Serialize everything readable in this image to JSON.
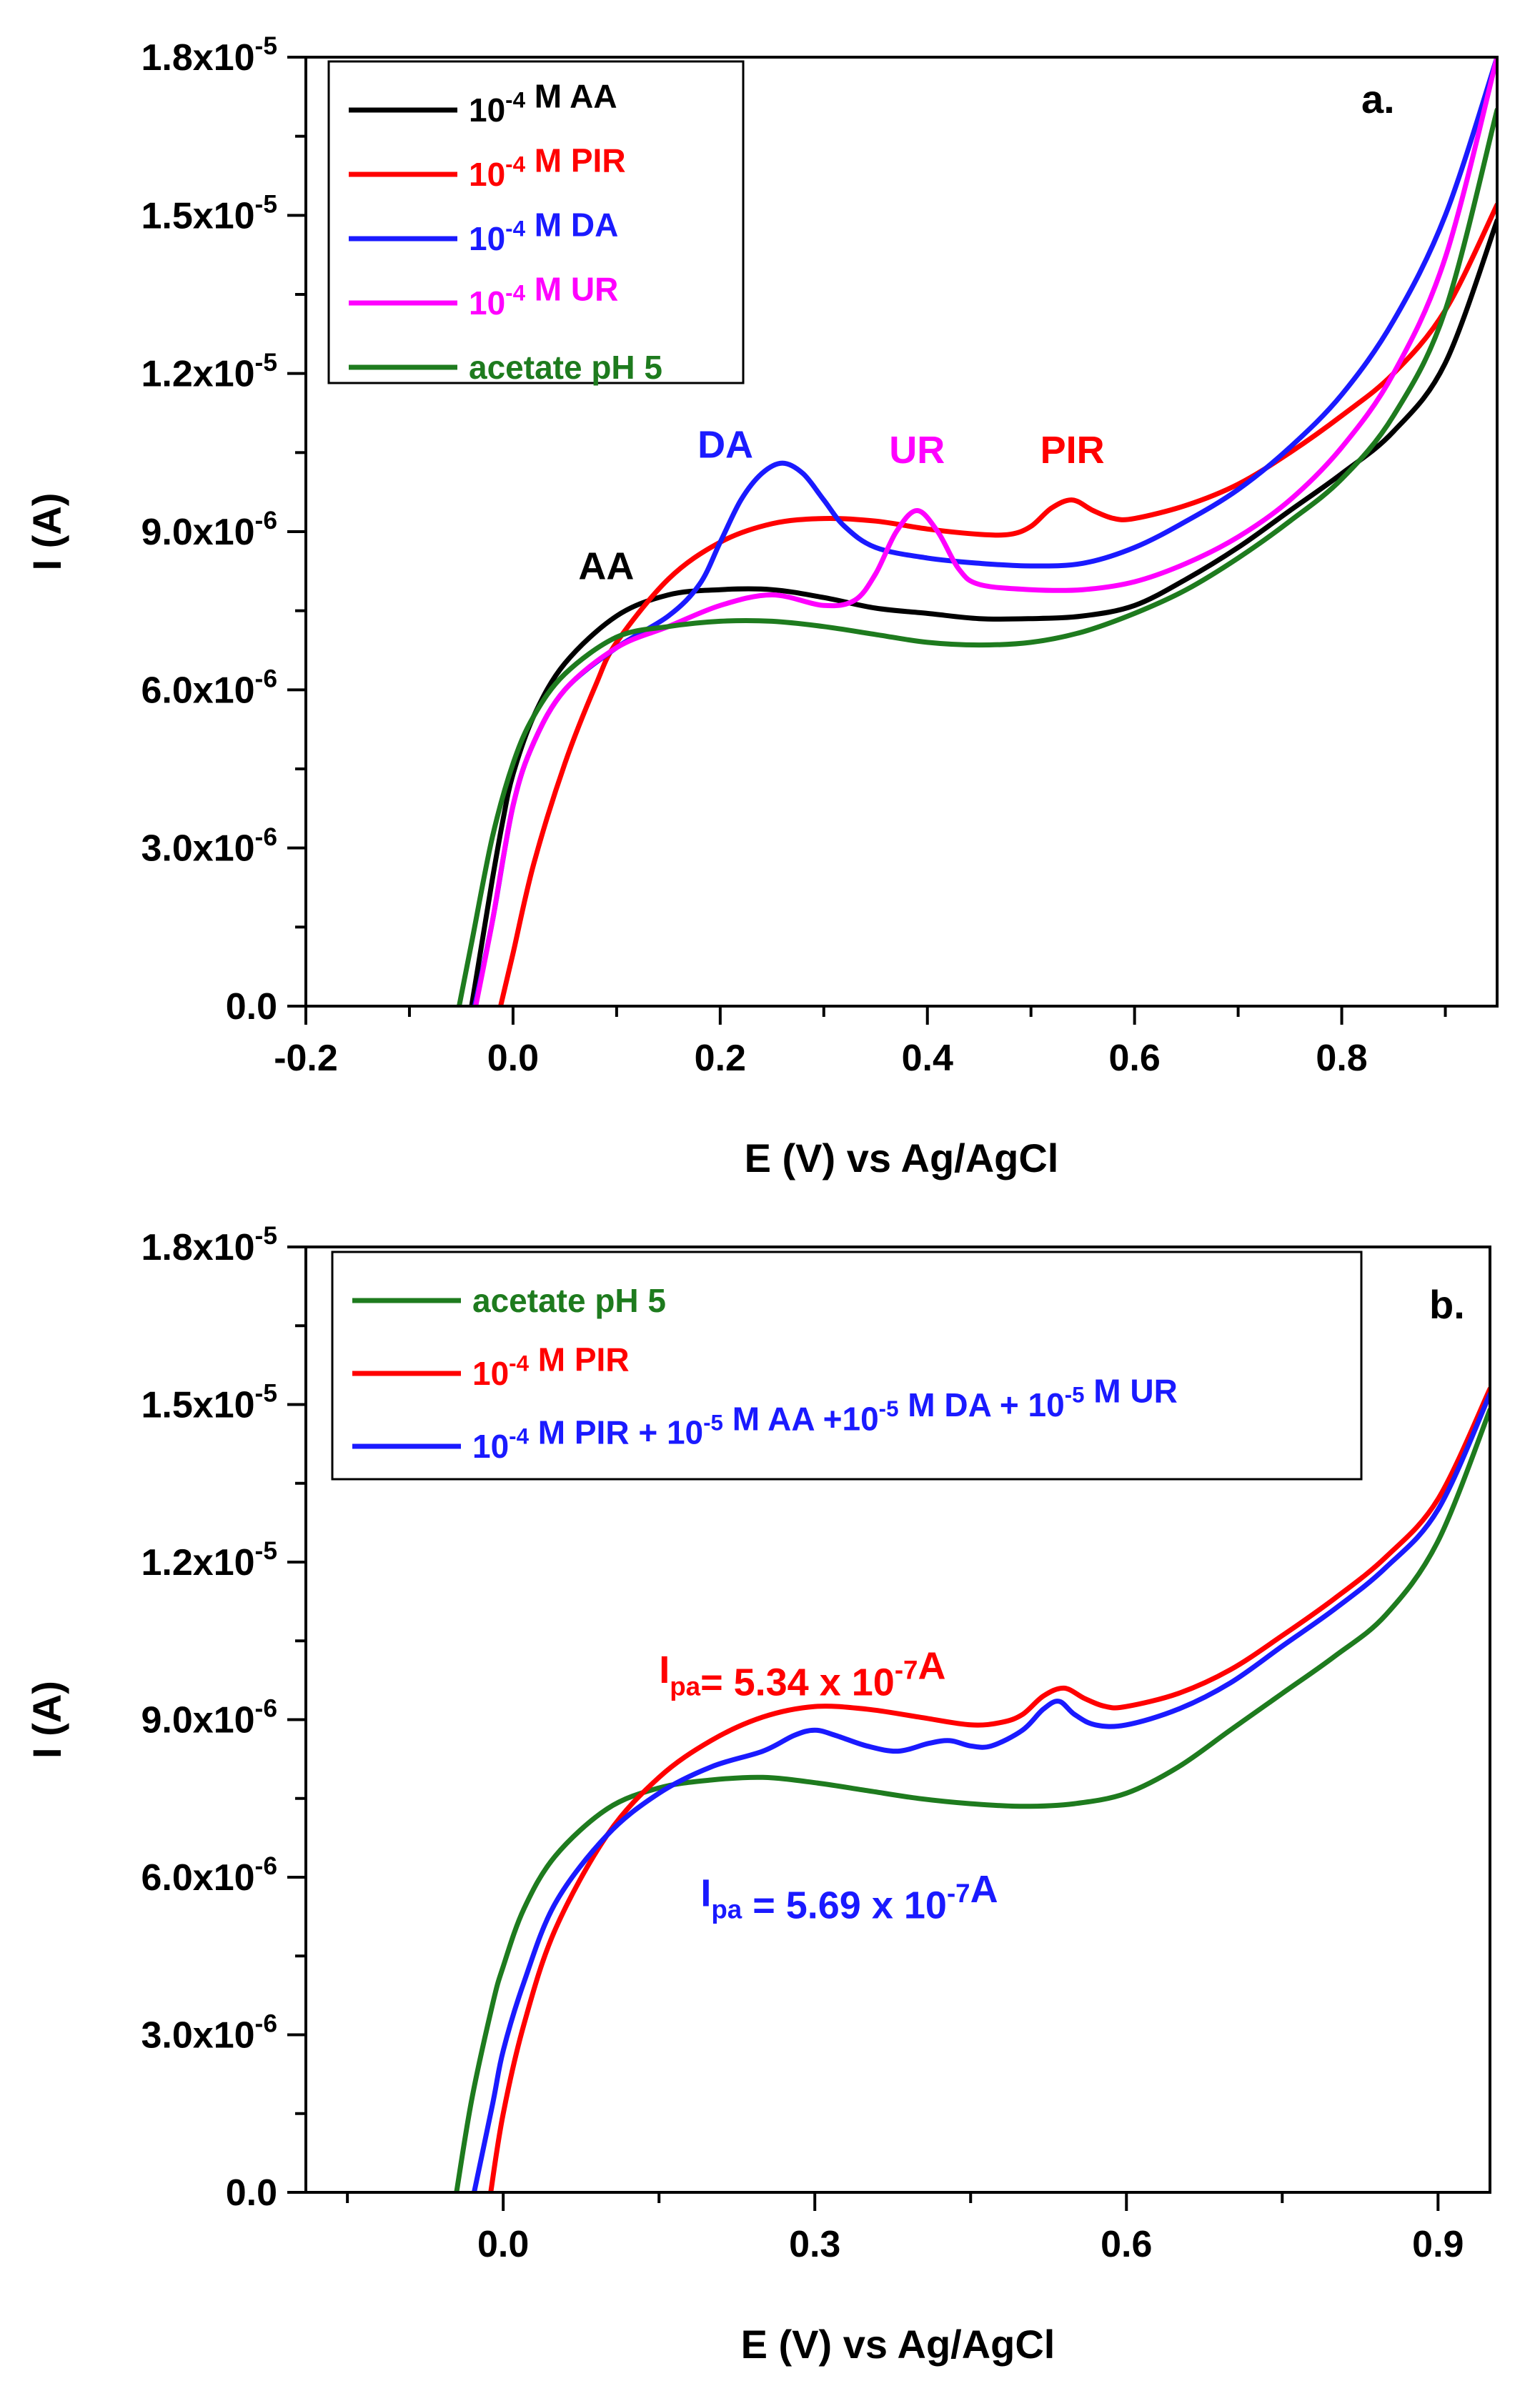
{
  "chart_data": [
    {
      "type": "line",
      "panel_label": "a.",
      "xlabel": "E (V) vs Ag/AgCl",
      "ylabel": "I (A)",
      "xlim": [
        -0.2,
        0.95
      ],
      "ylim": [
        0,
        1.8e-05
      ],
      "x_ticks": [
        -0.2,
        0.0,
        0.2,
        0.4,
        0.6,
        0.8
      ],
      "x_tick_labels": [
        "-0.2",
        "0.0",
        "0.2",
        "0.4",
        "0.6",
        "0.8"
      ],
      "y_ticks": [
        0,
        3e-06,
        6e-06,
        9e-06,
        1.2e-05,
        1.5e-05,
        1.8e-05
      ],
      "y_tick_labels": [
        {
          "mant": "0.0",
          "exp": ""
        },
        {
          "mant": "3.0x10",
          "exp": "-6"
        },
        {
          "mant": "6.0x10",
          "exp": "-6"
        },
        {
          "mant": "9.0x10",
          "exp": "-6"
        },
        {
          "mant": "1.2x10",
          "exp": "-5"
        },
        {
          "mant": "1.5x10",
          "exp": "-5"
        },
        {
          "mant": "1.8x10",
          "exp": "-5"
        }
      ],
      "legend_position": "top-left",
      "legend": [
        {
          "series": "AA",
          "parts": [
            {
              "t": "10"
            },
            {
              "t": "-4",
              "sup": true
            },
            {
              "t": " M AA"
            }
          ]
        },
        {
          "series": "PIR",
          "parts": [
            {
              "t": "10"
            },
            {
              "t": "-4",
              "sup": true
            },
            {
              "t": " M PIR"
            }
          ]
        },
        {
          "series": "DA",
          "parts": [
            {
              "t": "10"
            },
            {
              "t": "-4",
              "sup": true
            },
            {
              "t": " M DA"
            }
          ]
        },
        {
          "series": "UR",
          "parts": [
            {
              "t": "10"
            },
            {
              "t": "-4",
              "sup": true
            },
            {
              "t": " M UR"
            }
          ]
        },
        {
          "series": "acetate",
          "parts": [
            {
              "t": "acetate pH 5"
            }
          ]
        }
      ],
      "annotations": [
        {
          "text": "AA",
          "x": 0.09,
          "y": 8.1e-06,
          "color": "#000000"
        },
        {
          "text": "DA",
          "x": 0.205,
          "y": 1.04e-05,
          "color": "#1a1aff"
        },
        {
          "text": "UR",
          "x": 0.39,
          "y": 1.03e-05,
          "color": "#ff00ff"
        },
        {
          "text": "PIR",
          "x": 0.54,
          "y": 1.03e-05,
          "color": "#ff0000"
        }
      ],
      "series": [
        {
          "name": "AA",
          "color": "#000000",
          "x": [
            -0.04,
            -0.03,
            -0.02,
            -0.01,
            0.0,
            0.02,
            0.05,
            0.1,
            0.15,
            0.2,
            0.25,
            0.3,
            0.35,
            0.4,
            0.45,
            0.5,
            0.55,
            0.6,
            0.65,
            0.7,
            0.75,
            0.8,
            0.85,
            0.9,
            0.95
          ],
          "y": [
            0,
            1.2e-06,
            2.4e-06,
            3.5e-06,
            4.4e-06,
            5.5e-06,
            6.5e-06,
            7.4e-06,
            7.8e-06,
            7.9e-06,
            7.9e-06,
            7.75e-06,
            7.55e-06,
            7.45e-06,
            7.35e-06,
            7.35e-06,
            7.4e-06,
            7.6e-06,
            8.1e-06,
            8.7e-06,
            9.4e-06,
            1.01e-05,
            1.09e-05,
            1.22e-05,
            1.49e-05
          ]
        },
        {
          "name": "PIR",
          "color": "#ff0000",
          "x": [
            -0.012,
            0.0,
            0.02,
            0.05,
            0.08,
            0.1,
            0.15,
            0.2,
            0.25,
            0.3,
            0.35,
            0.4,
            0.45,
            0.48,
            0.5,
            0.52,
            0.54,
            0.56,
            0.58,
            0.6,
            0.65,
            0.7,
            0.75,
            0.8,
            0.85,
            0.9,
            0.95
          ],
          "y": [
            0,
            1e-06,
            2.7e-06,
            4.6e-06,
            6.1e-06,
            6.9e-06,
            8.1e-06,
            8.8e-06,
            9.15e-06,
            9.25e-06,
            9.2e-06,
            9.05e-06,
            8.95e-06,
            8.95e-06,
            9.1e-06,
            9.45e-06,
            9.6e-06,
            9.4e-06,
            9.25e-06,
            9.25e-06,
            9.5e-06,
            9.9e-06,
            1.05e-05,
            1.12e-05,
            1.2e-05,
            1.32e-05,
            1.52e-05
          ]
        },
        {
          "name": "DA",
          "color": "#1a1aff",
          "x": [
            -0.037,
            -0.02,
            0.0,
            0.02,
            0.05,
            0.1,
            0.15,
            0.18,
            0.2,
            0.22,
            0.24,
            0.26,
            0.28,
            0.3,
            0.32,
            0.35,
            0.4,
            0.45,
            0.5,
            0.55,
            0.6,
            0.65,
            0.7,
            0.75,
            0.8,
            0.85,
            0.9,
            0.95
          ],
          "y": [
            0,
            1.6e-06,
            3.8e-06,
            5e-06,
            6e-06,
            6.8e-06,
            7.4e-06,
            8e-06,
            8.8e-06,
            9.6e-06,
            1.01e-05,
            1.03e-05,
            1.01e-05,
            9.6e-06,
            9.1e-06,
            8.7e-06,
            8.5e-06,
            8.4e-06,
            8.35e-06,
            8.4e-06,
            8.7e-06,
            9.2e-06,
            9.8e-06,
            1.06e-05,
            1.16e-05,
            1.3e-05,
            1.5e-05,
            1.8e-05
          ]
        },
        {
          "name": "UR",
          "color": "#ff00ff",
          "x": [
            -0.036,
            -0.02,
            0.0,
            0.02,
            0.05,
            0.1,
            0.15,
            0.2,
            0.25,
            0.3,
            0.33,
            0.35,
            0.37,
            0.39,
            0.41,
            0.43,
            0.45,
            0.5,
            0.55,
            0.6,
            0.65,
            0.7,
            0.75,
            0.8,
            0.85,
            0.9,
            0.95
          ],
          "y": [
            0,
            1.6e-06,
            3.8e-06,
            5e-06,
            6e-06,
            6.8e-06,
            7.2e-06,
            7.6e-06,
            7.8e-06,
            7.6e-06,
            7.7e-06,
            8.2e-06,
            9e-06,
            9.4e-06,
            9e-06,
            8.3e-06,
            8e-06,
            7.9e-06,
            7.9e-06,
            8.05e-06,
            8.4e-06,
            8.9e-06,
            9.6e-06,
            1.06e-05,
            1.2e-05,
            1.42e-05,
            1.8e-05
          ]
        },
        {
          "name": "acetate",
          "color": "#1e7b1e",
          "x": [
            -0.052,
            -0.04,
            -0.02,
            0.0,
            0.02,
            0.05,
            0.1,
            0.15,
            0.2,
            0.25,
            0.3,
            0.35,
            0.4,
            0.45,
            0.5,
            0.55,
            0.6,
            0.65,
            0.7,
            0.75,
            0.8,
            0.85,
            0.9,
            0.95
          ],
          "y": [
            0,
            1.2e-06,
            3.2e-06,
            4.6e-06,
            5.5e-06,
            6.3e-06,
            7e-06,
            7.2e-06,
            7.3e-06,
            7.3e-06,
            7.2e-06,
            7.05e-06,
            6.9e-06,
            6.85e-06,
            6.9e-06,
            7.1e-06,
            7.45e-06,
            7.9e-06,
            8.5e-06,
            9.2e-06,
            1e-05,
            1.12e-05,
            1.32e-05,
            1.7e-05
          ]
        }
      ]
    },
    {
      "type": "line",
      "panel_label": "b.",
      "xlabel": "E (V) vs Ag/AgCl",
      "ylabel": "I (A)",
      "xlim": [
        -0.19,
        0.95
      ],
      "ylim": [
        0,
        1.8e-05
      ],
      "x_ticks": [
        0.0,
        0.3,
        0.6,
        0.9
      ],
      "x_tick_labels": [
        "0.0",
        "0.3",
        "0.6",
        "0.9"
      ],
      "y_ticks": [
        0,
        3e-06,
        6e-06,
        9e-06,
        1.2e-05,
        1.5e-05,
        1.8e-05
      ],
      "y_tick_labels": [
        {
          "mant": "0.0",
          "exp": ""
        },
        {
          "mant": "3.0x10",
          "exp": "-6"
        },
        {
          "mant": "6.0x10",
          "exp": "-6"
        },
        {
          "mant": "9.0x10",
          "exp": "-6"
        },
        {
          "mant": "1.2x10",
          "exp": "-5"
        },
        {
          "mant": "1.5x10",
          "exp": "-5"
        },
        {
          "mant": "1.8x10",
          "exp": "-5"
        }
      ],
      "legend_position": "top-left",
      "legend": [
        {
          "series": "acetate",
          "parts": [
            {
              "t": "acetate pH 5"
            }
          ]
        },
        {
          "series": "PIR",
          "parts": [
            {
              "t": "10"
            },
            {
              "t": "-4",
              "sup": true
            },
            {
              "t": " M PIR"
            }
          ]
        },
        {
          "series": "mixture",
          "parts": [
            {
              "t": "10"
            },
            {
              "t": "-4",
              "sup": true
            },
            {
              "t": " M PIR + 10"
            },
            {
              "t": "-5",
              "sup": true
            },
            {
              "t": " M AA +10"
            },
            {
              "t": "-5",
              "sup": true
            },
            {
              "t": " M DA + 10"
            },
            {
              "t": "-5",
              "sup": true
            },
            {
              "t": " M UR"
            }
          ]
        }
      ],
      "annotations": [
        {
          "color": "#ff0000",
          "x": 0.15,
          "y": 9.7e-06,
          "parts": [
            {
              "t": "I"
            },
            {
              "t": "pa",
              "sub": true
            },
            {
              "t": "= 5.34 x 10"
            },
            {
              "t": "-7",
              "sup": true
            },
            {
              "t": "A"
            }
          ]
        },
        {
          "color": "#1a1aff",
          "x": 0.19,
          "y": 5.45e-06,
          "parts": [
            {
              "t": "I"
            },
            {
              "t": "pa",
              "sub": true
            },
            {
              "t": " = 5.69 x 10"
            },
            {
              "t": "-7",
              "sup": true
            },
            {
              "t": "A"
            }
          ]
        }
      ],
      "series": [
        {
          "name": "acetate",
          "color": "#1e7b1e",
          "x": [
            -0.045,
            -0.03,
            -0.01,
            0.0,
            0.02,
            0.05,
            0.1,
            0.15,
            0.2,
            0.25,
            0.3,
            0.35,
            0.4,
            0.45,
            0.5,
            0.55,
            0.6,
            0.65,
            0.7,
            0.75,
            0.8,
            0.85,
            0.9,
            0.95
          ],
          "y": [
            0,
            1.8e-06,
            3.6e-06,
            4.3e-06,
            5.4e-06,
            6.4e-06,
            7.3e-06,
            7.7e-06,
            7.85e-06,
            7.9e-06,
            7.8e-06,
            7.65e-06,
            7.5e-06,
            7.4e-06,
            7.35e-06,
            7.4e-06,
            7.6e-06,
            8.1e-06,
            8.8e-06,
            9.5e-06,
            1.02e-05,
            1.1e-05,
            1.24e-05,
            1.49e-05
          ]
        },
        {
          "name": "PIR",
          "color": "#ff0000",
          "x": [
            -0.012,
            0.0,
            0.02,
            0.05,
            0.1,
            0.15,
            0.2,
            0.25,
            0.3,
            0.35,
            0.4,
            0.45,
            0.48,
            0.5,
            0.52,
            0.54,
            0.56,
            0.58,
            0.6,
            0.65,
            0.7,
            0.75,
            0.8,
            0.85,
            0.9,
            0.95
          ],
          "y": [
            0,
            1.5e-06,
            3.2e-06,
            5e-06,
            6.8e-06,
            7.9e-06,
            8.6e-06,
            9.05e-06,
            9.25e-06,
            9.2e-06,
            9.05e-06,
            8.9e-06,
            8.95e-06,
            9.1e-06,
            9.45e-06,
            9.6e-06,
            9.4e-06,
            9.25e-06,
            9.25e-06,
            9.5e-06,
            9.95e-06,
            1.06e-05,
            1.13e-05,
            1.21e-05,
            1.32e-05,
            1.53e-05
          ]
        },
        {
          "name": "mixture",
          "color": "#1a1aff",
          "x": [
            -0.028,
            -0.01,
            0.0,
            0.02,
            0.05,
            0.1,
            0.15,
            0.2,
            0.25,
            0.28,
            0.3,
            0.32,
            0.35,
            0.38,
            0.41,
            0.43,
            0.45,
            0.47,
            0.5,
            0.52,
            0.535,
            0.55,
            0.57,
            0.6,
            0.65,
            0.7,
            0.75,
            0.8,
            0.85,
            0.9,
            0.95
          ],
          "y": [
            0,
            1.7e-06,
            2.7e-06,
            4e-06,
            5.5e-06,
            6.8e-06,
            7.6e-06,
            8.1e-06,
            8.4e-06,
            8.7e-06,
            8.8e-06,
            8.7e-06,
            8.5e-06,
            8.4e-06,
            8.55e-06,
            8.6e-06,
            8.5e-06,
            8.5e-06,
            8.8e-06,
            9.2e-06,
            9.35e-06,
            9.1e-06,
            8.9e-06,
            8.9e-06,
            9.2e-06,
            9.7e-06,
            1.04e-05,
            1.11e-05,
            1.19e-05,
            1.3e-05,
            1.52e-05
          ]
        }
      ]
    }
  ]
}
